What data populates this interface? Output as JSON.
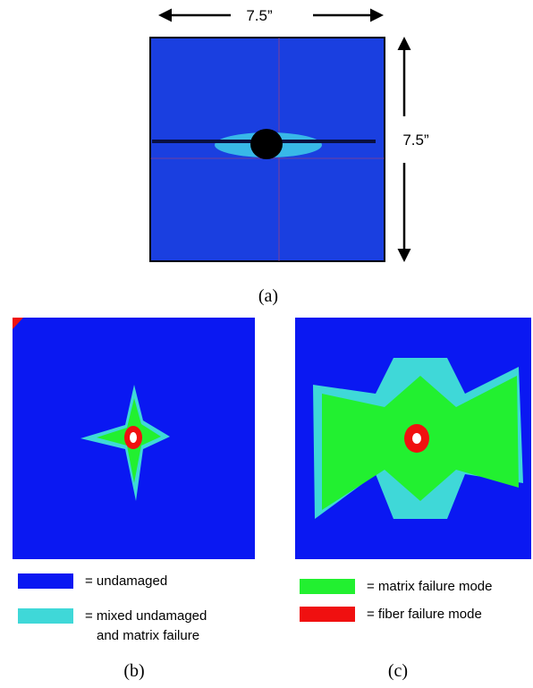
{
  "panel_a": {
    "width_label": "7.5”",
    "height_label": "7.5”",
    "caption": "(a)"
  },
  "panel_b": {
    "caption": "(b)"
  },
  "panel_c": {
    "caption": "(c)"
  },
  "legend": [
    {
      "lines": [
        "= undamaged"
      ],
      "color": "#0a18f2"
    },
    {
      "lines": [
        "= mixed undamaged",
        "and matrix failure"
      ],
      "color": "#3fd8d8"
    },
    {
      "lines": [
        "= matrix failure mode"
      ],
      "color": "#22f030"
    },
    {
      "lines": [
        "= fiber failure mode"
      ],
      "color": "#f01010"
    }
  ]
}
